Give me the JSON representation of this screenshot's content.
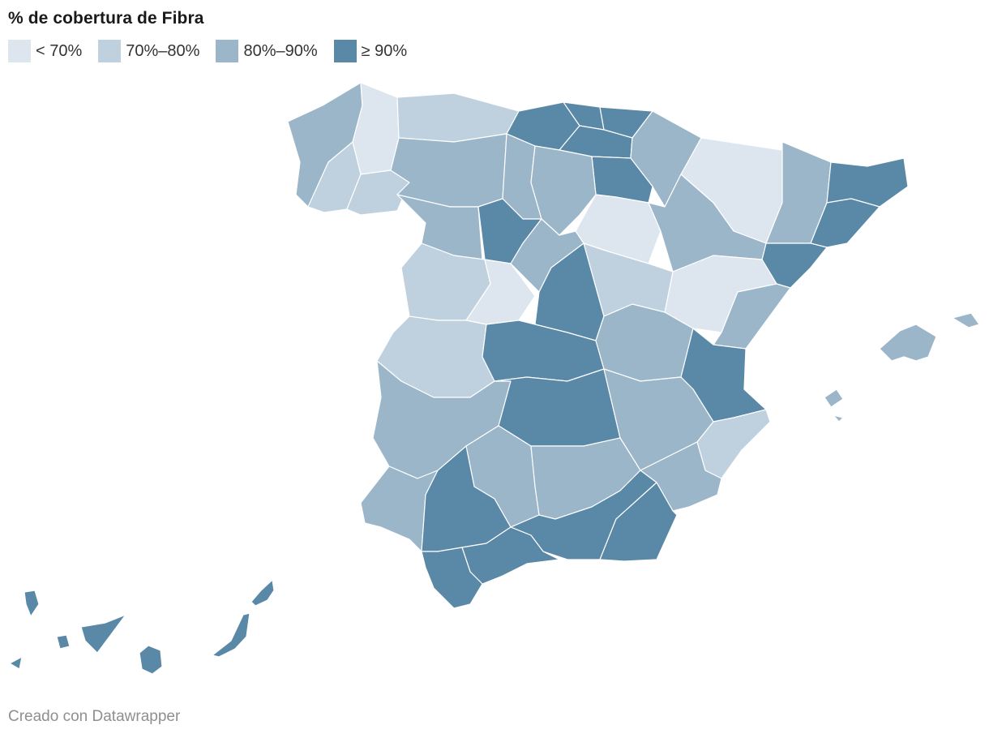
{
  "title": "% de cobertura de Fibra",
  "legend": [
    {
      "label": "< 70%",
      "color": "#dde6ee"
    },
    {
      "label": "70%–80%",
      "color": "#bfd1de"
    },
    {
      "label": "80%–90%",
      "color": "#9bb5c9"
    },
    {
      "label": "≥ 90%",
      "color": "#5a88a7"
    }
  ],
  "map": {
    "type": "choropleth",
    "region_classes": [
      {
        "name": "A Coruña",
        "class": 2
      },
      {
        "name": "Lugo",
        "class": 0
      },
      {
        "name": "Ourense",
        "class": 1
      },
      {
        "name": "Pontevedra",
        "class": 1
      },
      {
        "name": "Asturias",
        "class": 1
      },
      {
        "name": "Cantabria",
        "class": 3
      },
      {
        "name": "Bizkaia",
        "class": 3
      },
      {
        "name": "Gipuzkoa",
        "class": 3
      },
      {
        "name": "Araba",
        "class": 3
      },
      {
        "name": "Navarra",
        "class": 2
      },
      {
        "name": "La Rioja",
        "class": 3
      },
      {
        "name": "Huesca",
        "class": 0
      },
      {
        "name": "Lleida",
        "class": 2
      },
      {
        "name": "Girona",
        "class": 3
      },
      {
        "name": "Barcelona",
        "class": 3
      },
      {
        "name": "Tarragona",
        "class": 3
      },
      {
        "name": "León",
        "class": 2
      },
      {
        "name": "Palencia",
        "class": 2
      },
      {
        "name": "Burgos",
        "class": 2
      },
      {
        "name": "Zamora",
        "class": 2
      },
      {
        "name": "Valladolid",
        "class": 3
      },
      {
        "name": "Soria",
        "class": 0
      },
      {
        "name": "Zaragoza",
        "class": 2
      },
      {
        "name": "Salamanca",
        "class": 1
      },
      {
        "name": "Ávila",
        "class": 0
      },
      {
        "name": "Segovia",
        "class": 2
      },
      {
        "name": "Madrid",
        "class": 3
      },
      {
        "name": "Guadalajara",
        "class": 1
      },
      {
        "name": "Teruel",
        "class": 0
      },
      {
        "name": "Castellón",
        "class": 2
      },
      {
        "name": "Cáceres",
        "class": 1
      },
      {
        "name": "Toledo",
        "class": 3
      },
      {
        "name": "Cuenca",
        "class": 2
      },
      {
        "name": "Valencia",
        "class": 3
      },
      {
        "name": "Badajoz",
        "class": 2
      },
      {
        "name": "Ciudad Real",
        "class": 3
      },
      {
        "name": "Albacete",
        "class": 2
      },
      {
        "name": "Alicante",
        "class": 1
      },
      {
        "name": "Huelva",
        "class": 2
      },
      {
        "name": "Córdoba",
        "class": 2
      },
      {
        "name": "Jaén",
        "class": 2
      },
      {
        "name": "Murcia",
        "class": 2
      },
      {
        "name": "Sevilla",
        "class": 3
      },
      {
        "name": "Granada",
        "class": 3
      },
      {
        "name": "Almería",
        "class": 3
      },
      {
        "name": "Málaga",
        "class": 3
      },
      {
        "name": "Cádiz",
        "class": 3
      },
      {
        "name": "Illes Balears",
        "class": 2
      },
      {
        "name": "Las Palmas",
        "class": 3
      },
      {
        "name": "Santa Cruz de Tenerife",
        "class": 3
      }
    ]
  },
  "footer": "Creado con Datawrapper"
}
